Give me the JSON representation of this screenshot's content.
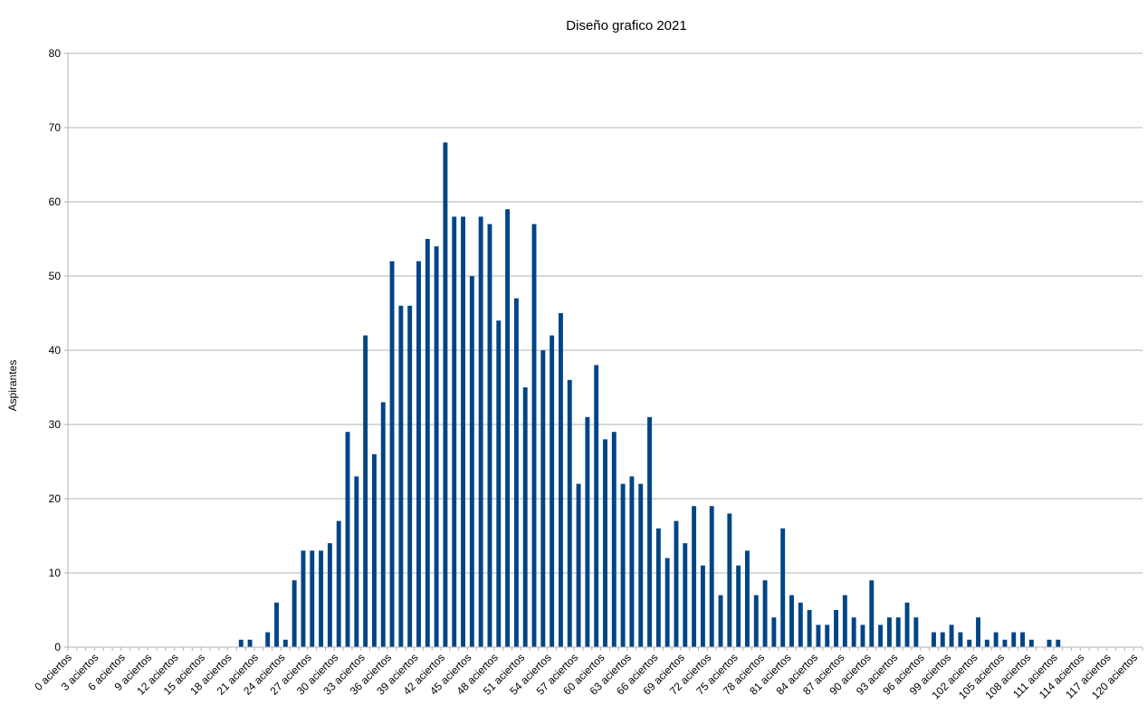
{
  "chart_data": {
    "type": "bar",
    "title": "Diseño grafico 2021",
    "xlabel": "",
    "ylabel": "Aspirantes",
    "ylim": [
      0,
      80
    ],
    "yticks": [
      0,
      10,
      20,
      30,
      40,
      50,
      60,
      70,
      80
    ],
    "grid": true,
    "legend": "none",
    "bar_color": "#004586",
    "categories": [
      "0 aciertos",
      "1 aciertos",
      "2 aciertos",
      "3 aciertos",
      "4 aciertos",
      "5 aciertos",
      "6 aciertos",
      "7 aciertos",
      "8 aciertos",
      "9 aciertos",
      "10 aciertos",
      "11 aciertos",
      "12 aciertos",
      "13 aciertos",
      "14 aciertos",
      "15 aciertos",
      "16 aciertos",
      "17 aciertos",
      "18 aciertos",
      "19 aciertos",
      "20 aciertos",
      "21 aciertos",
      "22 aciertos",
      "23 aciertos",
      "24 aciertos",
      "25 aciertos",
      "26 aciertos",
      "27 aciertos",
      "28 aciertos",
      "29 aciertos",
      "30 aciertos",
      "31 aciertos",
      "32 aciertos",
      "33 aciertos",
      "34 aciertos",
      "35 aciertos",
      "36 aciertos",
      "37 aciertos",
      "38 aciertos",
      "39 aciertos",
      "40 aciertos",
      "41 aciertos",
      "42 aciertos",
      "43 aciertos",
      "44 aciertos",
      "45 aciertos",
      "46 aciertos",
      "47 aciertos",
      "48 aciertos",
      "49 aciertos",
      "50 aciertos",
      "51 aciertos",
      "52 aciertos",
      "53 aciertos",
      "54 aciertos",
      "55 aciertos",
      "56 aciertos",
      "57 aciertos",
      "58 aciertos",
      "59 aciertos",
      "60 aciertos",
      "61 aciertos",
      "62 aciertos",
      "63 aciertos",
      "64 aciertos",
      "65 aciertos",
      "66 aciertos",
      "67 aciertos",
      "68 aciertos",
      "69 aciertos",
      "70 aciertos",
      "71 aciertos",
      "72 aciertos",
      "73 aciertos",
      "74 aciertos",
      "75 aciertos",
      "76 aciertos",
      "77 aciertos",
      "78 aciertos",
      "79 aciertos",
      "80 aciertos",
      "81 aciertos",
      "82 aciertos",
      "83 aciertos",
      "84 aciertos",
      "85 aciertos",
      "86 aciertos",
      "87 aciertos",
      "88 aciertos",
      "89 aciertos",
      "90 aciertos",
      "91 aciertos",
      "92 aciertos",
      "93 aciertos",
      "94 aciertos",
      "95 aciertos",
      "96 aciertos",
      "97 aciertos",
      "98 aciertos",
      "99 aciertos",
      "100 aciertos",
      "101 aciertos",
      "102 aciertos",
      "103 aciertos",
      "104 aciertos",
      "105 aciertos",
      "106 aciertos",
      "107 aciertos",
      "108 aciertos",
      "109 aciertos",
      "110 aciertos",
      "111 aciertos",
      "112 aciertos",
      "113 aciertos",
      "114 aciertos",
      "115 aciertos",
      "116 aciertos",
      "117 aciertos",
      "118 aciertos",
      "119 aciertos",
      "120 aciertos"
    ],
    "label_step": 3,
    "values": [
      0,
      0,
      0,
      0,
      0,
      0,
      0,
      0,
      0,
      0,
      0,
      0,
      0,
      0,
      0,
      0,
      0,
      0,
      0,
      1,
      1,
      0,
      2,
      6,
      1,
      9,
      13,
      13,
      13,
      14,
      17,
      29,
      23,
      42,
      26,
      33,
      52,
      46,
      46,
      52,
      55,
      54,
      68,
      58,
      58,
      50,
      58,
      57,
      44,
      59,
      47,
      35,
      57,
      40,
      42,
      45,
      36,
      22,
      31,
      38,
      28,
      29,
      22,
      23,
      22,
      31,
      16,
      12,
      17,
      14,
      19,
      11,
      19,
      7,
      18,
      11,
      13,
      7,
      9,
      4,
      16,
      7,
      6,
      5,
      3,
      3,
      5,
      7,
      4,
      3,
      9,
      3,
      4,
      4,
      6,
      4,
      0,
      2,
      2,
      3,
      2,
      1,
      4,
      1,
      2,
      1,
      2,
      2,
      1,
      0,
      1,
      1,
      0,
      0,
      0,
      0,
      0,
      0,
      0,
      0,
      0
    ]
  }
}
